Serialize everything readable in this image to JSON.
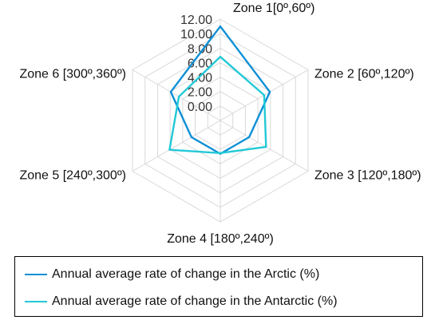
{
  "chart_data": {
    "type": "radar",
    "categories": [
      "Zone 1[0º,60º)",
      "Zone 2 [60º,120º)",
      "Zone 3 [120º,180º)",
      "Zone 4 [180º,240º)",
      "Zone 5 [240º,300º)",
      "Zone 6 [300º,360º)"
    ],
    "series": [
      {
        "name": "Annual average rate of change in the Arctic (%)",
        "color": "#0e8fd6",
        "values": [
          11.0,
          5.9,
          2.6,
          2.6,
          2.6,
          5.9
        ]
      },
      {
        "name": "Annual average rate of change in the Antarctic (%)",
        "color": "#22c9d6",
        "values": [
          6.8,
          5.0,
          5.3,
          2.5,
          6.1,
          4.6
        ]
      }
    ],
    "r_ticks": [
      "0.00",
      "2.00",
      "4.00",
      "6.00",
      "8.00",
      "10.00",
      "12.00"
    ],
    "r_range": [
      -2,
      12
    ],
    "grid": true,
    "legend_position": "bottom"
  }
}
